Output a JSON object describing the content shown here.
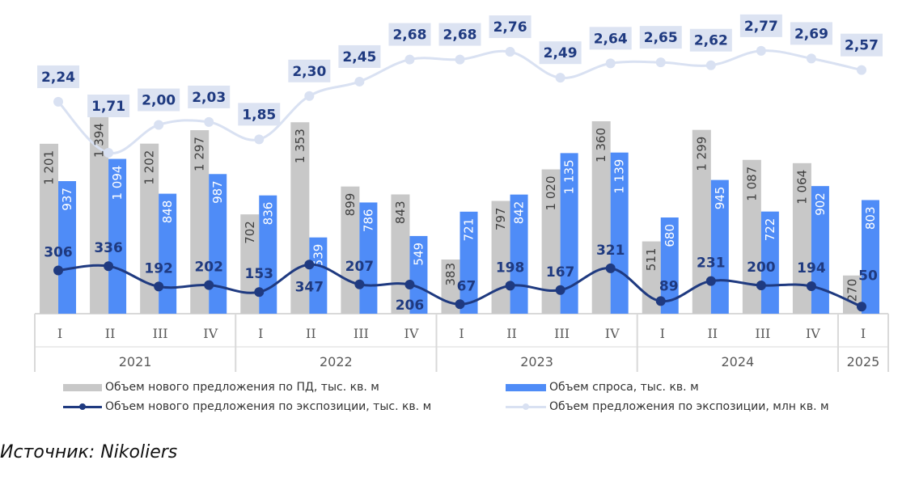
{
  "chart_data": {
    "type": "bar+line",
    "years": [
      {
        "label": "2021",
        "span": 4
      },
      {
        "label": "2022",
        "span": 4
      },
      {
        "label": "2023",
        "span": 4
      },
      {
        "label": "2024",
        "span": 4
      },
      {
        "label": "2025",
        "span": 1
      }
    ],
    "categories": [
      "I",
      "II",
      "III",
      "IV",
      "I",
      "II",
      "III",
      "IV",
      "I",
      "II",
      "III",
      "IV",
      "I",
      "II",
      "III",
      "IV",
      "I"
    ],
    "series": [
      {
        "name": "Объем нового предложения по ПД, тыс. кв. м",
        "type": "bar",
        "color": "#c8c8c8",
        "values": [
          1201,
          1394,
          1202,
          1297,
          702,
          1353,
          899,
          843,
          383,
          797,
          1020,
          1360,
          511,
          1299,
          1087,
          1064,
          270
        ],
        "labels": [
          "1 201",
          "1 394",
          "1 202",
          "1 297",
          "702",
          "1 353",
          "899",
          "843",
          "383",
          "797",
          "1 020",
          "1 360",
          "511",
          "1 299",
          "1 087",
          "1 064",
          "270"
        ]
      },
      {
        "name": "Объем спроса, тыс. кв. м",
        "type": "bar",
        "color": "#4f8cf7",
        "values": [
          937,
          1094,
          848,
          987,
          836,
          539,
          786,
          549,
          721,
          842,
          1135,
          1139,
          680,
          945,
          722,
          902,
          803
        ],
        "labels": [
          "937",
          "1 094",
          "848",
          "987",
          "836",
          "539",
          "786",
          "549",
          "721",
          "842",
          "1 135",
          "1 139",
          "680",
          "945",
          "722",
          "902",
          "803"
        ]
      },
      {
        "name": "Объем нового предложения по экспозиции, тыс. кв. м",
        "type": "line",
        "color": "#1f3a80",
        "values": [
          306,
          336,
          192,
          202,
          153,
          347,
          207,
          206,
          67,
          198,
          167,
          321,
          89,
          231,
          200,
          194,
          50
        ],
        "labels": [
          "306",
          "336",
          "192",
          "202",
          "153",
          "347",
          "207",
          "206",
          "67",
          "198",
          "167",
          "321",
          "89",
          "231",
          "200",
          "194",
          "50"
        ]
      },
      {
        "name": "Объем предложения по экспозиции, млн кв. м",
        "type": "line",
        "axis": "secondary",
        "color": "#d9e1f2",
        "values": [
          2.24,
          1.71,
          2.0,
          2.03,
          1.85,
          2.3,
          2.45,
          2.68,
          2.68,
          2.76,
          2.49,
          2.64,
          2.65,
          2.62,
          2.77,
          2.69,
          2.57
        ],
        "labels": [
          "2,24",
          "1,71",
          "2,00",
          "2,03",
          "1,85",
          "2,30",
          "2,45",
          "2,68",
          "2,68",
          "2,76",
          "2,49",
          "2,64",
          "2,65",
          "2,62",
          "2,77",
          "2,69",
          "2,57"
        ]
      }
    ],
    "legend_position": "bottom",
    "grid": false
  },
  "source": "Источник: Nikoliers"
}
